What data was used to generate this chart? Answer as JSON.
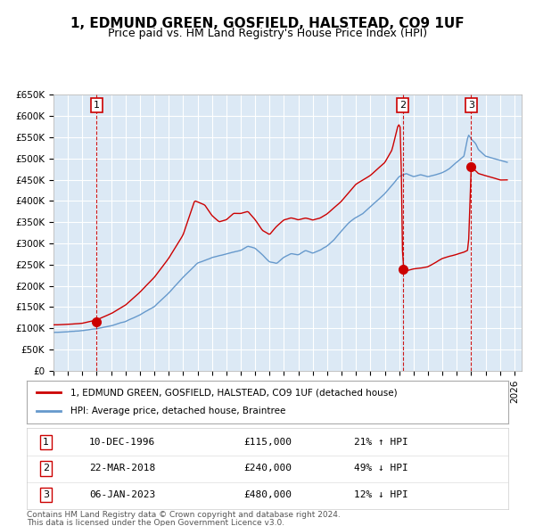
{
  "title": "1, EDMUND GREEN, GOSFIELD, HALSTEAD, CO9 1UF",
  "subtitle": "Price paid vs. HM Land Registry's House Price Index (HPI)",
  "legend_line1": "1, EDMUND GREEN, GOSFIELD, HALSTEAD, CO9 1UF (detached house)",
  "legend_line2": "HPI: Average price, detached house, Braintree",
  "footer1": "Contains HM Land Registry data © Crown copyright and database right 2024.",
  "footer2": "This data is licensed under the Open Government Licence v3.0.",
  "transactions": [
    {
      "num": 1,
      "date_str": "10-DEC-1996",
      "price": 115000,
      "pct": "21%",
      "dir": "↑",
      "year_x": 1997.0
    },
    {
      "num": 2,
      "date_str": "22-MAR-2018",
      "price": 240000,
      "pct": "49%",
      "dir": "↓",
      "year_x": 2018.25
    },
    {
      "num": 3,
      "date_str": "06-JAN-2023",
      "price": 480000,
      "pct": "12%",
      "dir": "↓",
      "year_x": 2023.0
    }
  ],
  "price_color": "#cc0000",
  "hpi_color": "#6699cc",
  "vline_color": "#cc0000",
  "dot_color": "#cc0000",
  "bg_color": "#dce9f5",
  "grid_color": "#ffffff",
  "ylim": [
    0,
    650000
  ],
  "xlim_start": 1994.0,
  "xlim_end": 2026.5,
  "yticks": [
    0,
    50000,
    100000,
    150000,
    200000,
    250000,
    300000,
    350000,
    400000,
    450000,
    500000,
    550000,
    600000,
    650000
  ],
  "ytick_labels": [
    "£0",
    "£50K",
    "£100K",
    "£150K",
    "£200K",
    "£250K",
    "£300K",
    "£350K",
    "£400K",
    "£450K",
    "£500K",
    "£550K",
    "£600K",
    "£650K"
  ],
  "xticks": [
    1994,
    1995,
    1996,
    1997,
    1998,
    1999,
    2000,
    2001,
    2002,
    2003,
    2004,
    2005,
    2006,
    2007,
    2008,
    2009,
    2010,
    2011,
    2012,
    2013,
    2014,
    2015,
    2016,
    2017,
    2018,
    2019,
    2020,
    2021,
    2022,
    2023,
    2024,
    2025,
    2026
  ],
  "table_data": [
    [
      "1",
      "10-DEC-1996",
      "£115,000",
      "21% ↑ HPI"
    ],
    [
      "2",
      "22-MAR-2018",
      "£240,000",
      "49% ↓ HPI"
    ],
    [
      "3",
      "06-JAN-2023",
      "£480,000",
      "12% ↓ HPI"
    ]
  ]
}
